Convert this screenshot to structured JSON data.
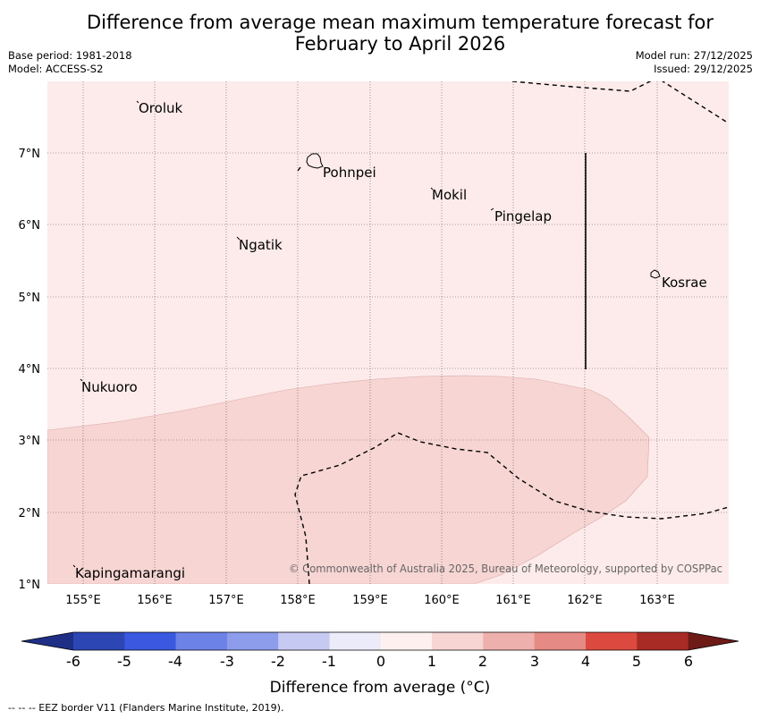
{
  "title": {
    "line1": "Difference from average mean maximum temperature forecast for",
    "line2": "February to April 2026"
  },
  "meta": {
    "base_period": "Base period: 1981-2018",
    "model": "Model: ACCESS-S2",
    "model_run": "Model run: 27/12/2025",
    "issued": "Issued: 29/12/2025"
  },
  "map": {
    "lat_labels": [
      "7°N",
      "6°N",
      "5°N",
      "4°N",
      "3°N",
      "2°N",
      "1°N"
    ],
    "lon_labels": [
      "155°E",
      "156°E",
      "157°E",
      "158°E",
      "159°E",
      "160°E",
      "161°E",
      "162°E",
      "163°E"
    ],
    "places": [
      "Oroluk",
      "Pohnpei",
      "Mokil",
      "Pingelap",
      "Ngatik",
      "Kosrae",
      "Nukuoro",
      "Kapingamarangi"
    ],
    "copyright": "© Commonwealth of Australia 2025, Bureau of Meteorology, supported by COSPPac",
    "colors": {
      "anomaly_0_1": "#fcebea",
      "anomaly_1_2": "#f6d5d3"
    }
  },
  "colorbar": {
    "tick_labels": [
      "-6",
      "-5",
      "-4",
      "-3",
      "-2",
      "-1",
      "0",
      "1",
      "2",
      "3",
      "4",
      "5",
      "6"
    ],
    "colors": [
      "#1f2f86",
      "#2c46b4",
      "#3a58e0",
      "#6d82e6",
      "#8d9deb",
      "#c6caf3",
      "#ebebfa",
      "#fdf0ef",
      "#f6d5d3",
      "#eeb0ad",
      "#e58a84",
      "#dc4a3f",
      "#a92b25",
      "#6e1a16"
    ],
    "label": "Difference from average (°C)"
  },
  "footer": "--  --  -- EEZ border V11 (Flanders Marine Institute, 2019)."
}
